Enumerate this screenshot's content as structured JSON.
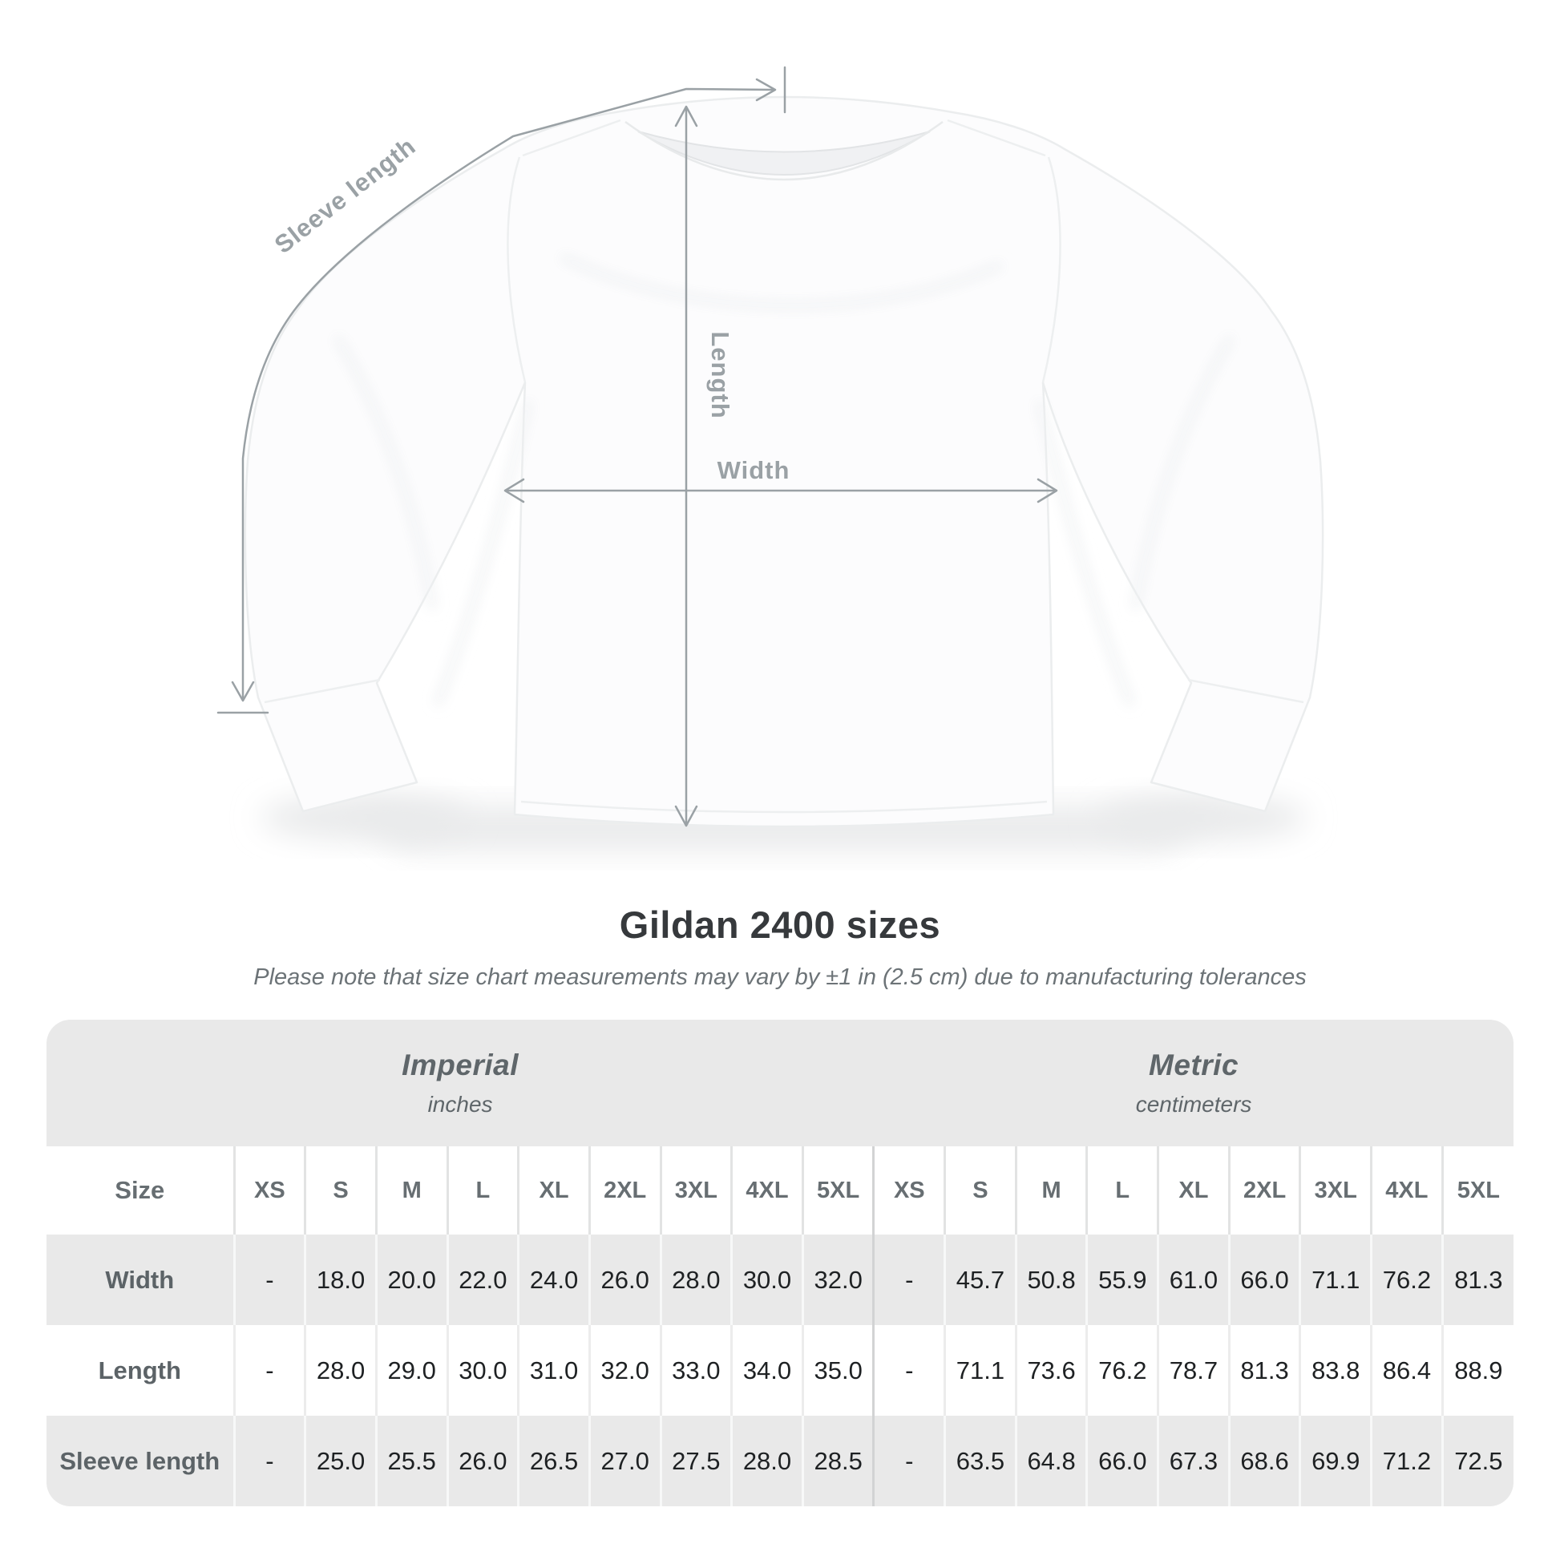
{
  "diagram": {
    "labels": {
      "sleeve_length": "Sleeve length",
      "length": "Length",
      "width": "Width"
    },
    "colors": {
      "measure_line": "#9aa1a5",
      "shirt_fill": "#fcfcfd",
      "shirt_stroke": "#ebedee"
    }
  },
  "header": {
    "title": "Gildan 2400 sizes",
    "subtitle": "Please note that size chart measurements may vary by ±1 in (2.5 cm) due to manufacturing tolerances"
  },
  "table": {
    "unit_groups": [
      {
        "name": "Imperial",
        "unit": "inches"
      },
      {
        "name": "Metric",
        "unit": "centimeters"
      }
    ],
    "size_header": "Size",
    "sizes": [
      "XS",
      "S",
      "M",
      "L",
      "XL",
      "2XL",
      "3XL",
      "4XL",
      "5XL"
    ],
    "rows": [
      {
        "label": "Width",
        "imperial": [
          "-",
          "18.0",
          "20.0",
          "22.0",
          "24.0",
          "26.0",
          "28.0",
          "30.0",
          "32.0"
        ],
        "metric": [
          "-",
          "45.7",
          "50.8",
          "55.9",
          "61.0",
          "66.0",
          "71.1",
          "76.2",
          "81.3"
        ]
      },
      {
        "label": "Length",
        "imperial": [
          "-",
          "28.0",
          "29.0",
          "30.0",
          "31.0",
          "32.0",
          "33.0",
          "34.0",
          "35.0"
        ],
        "metric": [
          "-",
          "71.1",
          "73.6",
          "76.2",
          "78.7",
          "81.3",
          "83.8",
          "86.4",
          "88.9"
        ]
      },
      {
        "label": "Sleeve length",
        "imperial": [
          "-",
          "25.0",
          "25.5",
          "26.0",
          "26.5",
          "27.0",
          "27.5",
          "28.0",
          "28.5"
        ],
        "metric": [
          "-",
          "63.5",
          "64.8",
          "66.0",
          "67.3",
          "68.6",
          "69.9",
          "71.2",
          "72.5"
        ]
      }
    ],
    "colors": {
      "band_gray": "#e9e9e9",
      "row_gray": "#e9e9e9",
      "header_text": "#5f666a",
      "value_text": "#1e2123"
    }
  }
}
